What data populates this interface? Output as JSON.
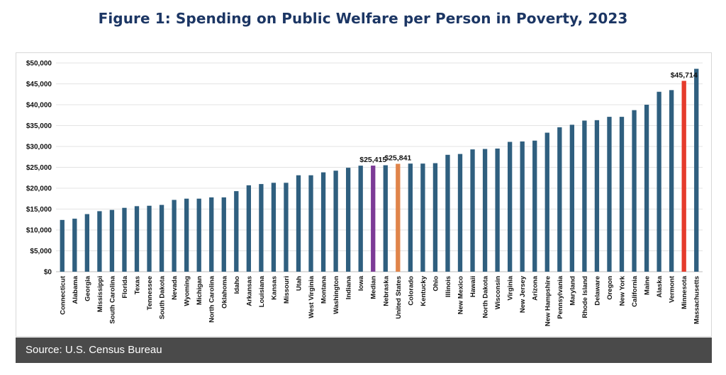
{
  "title": "Figure 1: Spending on Public Welfare per Person in Poverty, 2023",
  "source": "Source: U.S. Census Bureau",
  "colors": {
    "default": "#2f5f7f",
    "median": "#7b3b96",
    "united_states": "#e0844a",
    "minnesota": "#e53b2c",
    "grid": "#e3e3e3"
  },
  "chart_data": {
    "type": "bar",
    "title": "Figure 1: Spending on Public Welfare per Person in Poverty, 2023",
    "xlabel": "",
    "ylabel": "",
    "ylim": [
      0,
      50000
    ],
    "yticks": [
      0,
      5000,
      10000,
      15000,
      20000,
      25000,
      30000,
      35000,
      40000,
      45000,
      50000
    ],
    "ytick_labels": [
      "$0",
      "$5,000",
      "$10,000",
      "$15,000",
      "$20,000",
      "$25,000",
      "$30,000",
      "$35,000",
      "$40,000",
      "$45,000",
      "$50,000"
    ],
    "grid": true,
    "categories": [
      "Connecticut",
      "Alabama",
      "Georgia",
      "Mississippi",
      "South Carolina",
      "Florida",
      "Texas",
      "Tennessee",
      "South Dakota",
      "Nevada",
      "Wyoming",
      "Michigan",
      "North Carolina",
      "Oklahoma",
      "Idaho",
      "Arkansas",
      "Louisiana",
      "Kansas",
      "Missouri",
      "Utah",
      "West Virginia",
      "Montana",
      "Washington",
      "Indiana",
      "Iowa",
      "Median",
      "Nebraska",
      "United States",
      "Colorado",
      "Kentucky",
      "Ohio",
      "Illinois",
      "New Mexico",
      "Hawaii",
      "North Dakota",
      "Wisconsin",
      "Virginia",
      "New Jersey",
      "Arizona",
      "New Hampshire",
      "Pennsylvania",
      "Maryland",
      "Rhode Island",
      "Delaware",
      "Oregon",
      "New York",
      "California",
      "Maine",
      "Alaska",
      "Vermont",
      "Minnesota",
      "Massachusetts"
    ],
    "values": [
      12400,
      12700,
      13800,
      14500,
      14800,
      15300,
      15700,
      15800,
      16000,
      17200,
      17500,
      17500,
      17800,
      17800,
      19300,
      20700,
      21000,
      21300,
      21300,
      23100,
      23100,
      23800,
      24200,
      24900,
      25400,
      25415,
      25500,
      25841,
      25900,
      25900,
      26000,
      28000,
      28200,
      29300,
      29400,
      29500,
      31100,
      31200,
      31400,
      33300,
      34600,
      35200,
      36200,
      36300,
      37100,
      37100,
      38700,
      40000,
      43100,
      43500,
      45714,
      48600
    ],
    "highlights": {
      "Median": "median",
      "United States": "united_states",
      "Minnesota": "minnesota"
    },
    "annotations": [
      {
        "category": "Median",
        "label": "$25,415"
      },
      {
        "category": "United States",
        "label": "$25,841"
      },
      {
        "category": "Minnesota",
        "label": "$45,714"
      }
    ]
  }
}
